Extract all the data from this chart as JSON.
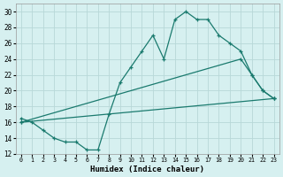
{
  "xlabel": "Humidex (Indice chaleur)",
  "background_color": "#d6f0f0",
  "grid_color": "#b8d8d8",
  "line_color": "#1a7a6e",
  "xlim": [
    -0.5,
    23.5
  ],
  "ylim": [
    12,
    31
  ],
  "xticks": [
    0,
    1,
    2,
    3,
    4,
    5,
    6,
    7,
    8,
    9,
    10,
    11,
    12,
    13,
    14,
    15,
    16,
    17,
    18,
    19,
    20,
    21,
    22,
    23
  ],
  "yticks": [
    12,
    14,
    16,
    18,
    20,
    22,
    24,
    26,
    28,
    30
  ],
  "series": [
    {
      "x": [
        0,
        1,
        2,
        3,
        4,
        5,
        6,
        7,
        8,
        9,
        10,
        11,
        12,
        13,
        14,
        15,
        16,
        17,
        18,
        19,
        20,
        21,
        22,
        23
      ],
      "y": [
        16.5,
        16,
        15,
        14,
        13.5,
        13.5,
        12.5,
        12.5,
        17,
        21,
        23,
        25,
        27,
        24,
        29,
        30,
        29,
        29,
        27,
        26,
        25,
        22,
        20,
        19
      ],
      "marker": true
    },
    {
      "x": [
        0,
        20,
        21,
        22,
        23
      ],
      "y": [
        16,
        24,
        22,
        20,
        19
      ],
      "marker": true
    },
    {
      "x": [
        0,
        23
      ],
      "y": [
        16,
        19
      ],
      "marker": true
    }
  ]
}
